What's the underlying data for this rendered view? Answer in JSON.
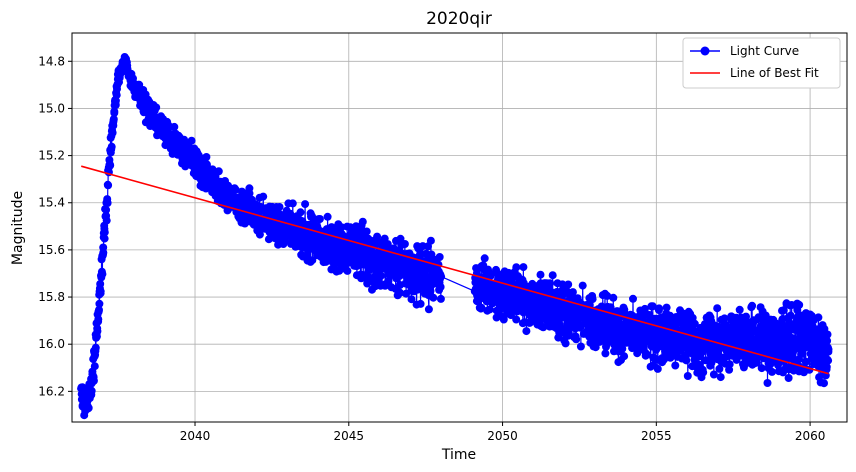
{
  "chart_data": {
    "type": "line",
    "title": "2020qir",
    "xlabel": "Time",
    "ylabel": "Magnitude",
    "xlim": [
      2036.0,
      2061.2
    ],
    "ylim": [
      16.33,
      14.68
    ],
    "y_inverted": true,
    "grid": true,
    "legend_position": "top-right",
    "x_ticks": [
      2040,
      2045,
      2050,
      2055,
      2060
    ],
    "y_ticks": [
      14.8,
      15.0,
      15.2,
      15.4,
      15.6,
      15.8,
      16.0,
      16.2
    ],
    "series": [
      {
        "name": "Light Curve",
        "style": "line-marker",
        "color": "#0000ff",
        "trend": {
          "x": [
            2036.3,
            2036.5,
            2036.7,
            2036.9,
            2037.1,
            2037.3,
            2037.5,
            2037.7,
            2037.9,
            2038.2,
            2038.6,
            2039.0,
            2039.5,
            2040.0,
            2040.5,
            2041.0,
            2042.0,
            2043.0,
            2044.0,
            2045.0,
            2046.0,
            2047.0,
            2048.0,
            2049.1,
            2050.0,
            2051.0,
            2052.0,
            2053.0,
            2054.0,
            2055.0,
            2056.0,
            2057.0,
            2058.0,
            2059.0,
            2060.0,
            2060.6
          ],
          "y": [
            16.2,
            16.25,
            16.1,
            15.8,
            15.45,
            15.1,
            14.87,
            14.8,
            14.87,
            14.95,
            15.03,
            15.1,
            15.17,
            15.23,
            15.3,
            15.37,
            15.45,
            15.5,
            15.56,
            15.6,
            15.65,
            15.68,
            15.72,
            15.76,
            15.78,
            15.82,
            15.86,
            15.9,
            15.94,
            15.96,
            15.98,
            16.0,
            15.98,
            16.0,
            15.98,
            16.02
          ],
          "spread": [
            0.08,
            0.05,
            0.06,
            0.06,
            0.06,
            0.04,
            0.03,
            0.02,
            0.03,
            0.04,
            0.05,
            0.05,
            0.05,
            0.06,
            0.06,
            0.06,
            0.07,
            0.08,
            0.09,
            0.09,
            0.1,
            0.1,
            0.1,
            0.1,
            0.1,
            0.1,
            0.1,
            0.1,
            0.1,
            0.1,
            0.1,
            0.11,
            0.11,
            0.12,
            0.12,
            0.11
          ]
        }
      },
      {
        "name": "Line of Best Fit",
        "style": "line",
        "color": "#ff0000",
        "x": [
          2036.3,
          2060.6
        ],
        "y": [
          15.245,
          16.125
        ]
      }
    ]
  }
}
